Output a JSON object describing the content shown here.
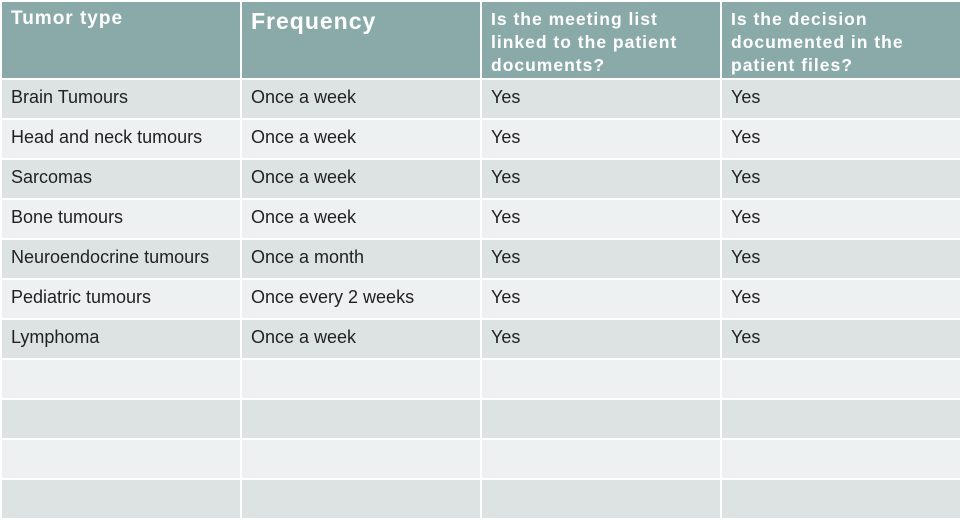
{
  "table": {
    "headers": [
      "Tumor type",
      "Frequency",
      "Is the meeting list linked to the patient documents?",
      "Is the decision documented in the patient files?"
    ],
    "rows": [
      [
        "Brain Tumours",
        "Once a week",
        "Yes",
        "Yes"
      ],
      [
        "Head and neck tumours",
        "Once a week",
        "Yes",
        "Yes"
      ],
      [
        "Sarcomas",
        "Once a week",
        "Yes",
        "Yes"
      ],
      [
        "Bone tumours",
        "Once a week",
        "Yes",
        "Yes"
      ],
      [
        "Neuroendocrine tumours",
        "Once a month",
        "Yes",
        "Yes"
      ],
      [
        "Pediatric tumours",
        "Once every 2 weeks",
        "Yes",
        "Yes"
      ],
      [
        "Lymphoma",
        "Once a week",
        "Yes",
        "Yes"
      ],
      [
        "",
        "",
        "",
        ""
      ],
      [
        "",
        "",
        "",
        ""
      ],
      [
        "",
        "",
        "",
        ""
      ],
      [
        "",
        "",
        "",
        ""
      ]
    ]
  },
  "colors": {
    "header_bg": "#8aaaaa",
    "row_dark": "#dde3e3",
    "row_light": "#eef1f1"
  }
}
